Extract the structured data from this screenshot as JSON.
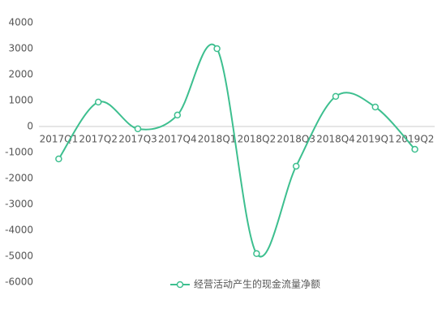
{
  "chart_data": {
    "type": "line",
    "categories": [
      "2017Q1",
      "2017Q2",
      "2017Q3",
      "2017Q4",
      "2018Q1",
      "2018Q2",
      "2018Q3",
      "2018Q4",
      "2019Q1",
      "2019Q2"
    ],
    "series": [
      {
        "name": "经营活动产生的现金流量净额",
        "color": "#3dbf8f",
        "values": [
          -1250,
          940,
          -90,
          440,
          3000,
          -4900,
          -1530,
          1160,
          750,
          -880
        ]
      }
    ],
    "ylim": [
      -6000,
      4000
    ],
    "yticks": [
      -6000,
      -5000,
      -4000,
      -3000,
      -2000,
      -1000,
      0,
      1000,
      2000,
      3000,
      4000
    ],
    "smooth": true,
    "grid": false,
    "legend": "bottom"
  }
}
